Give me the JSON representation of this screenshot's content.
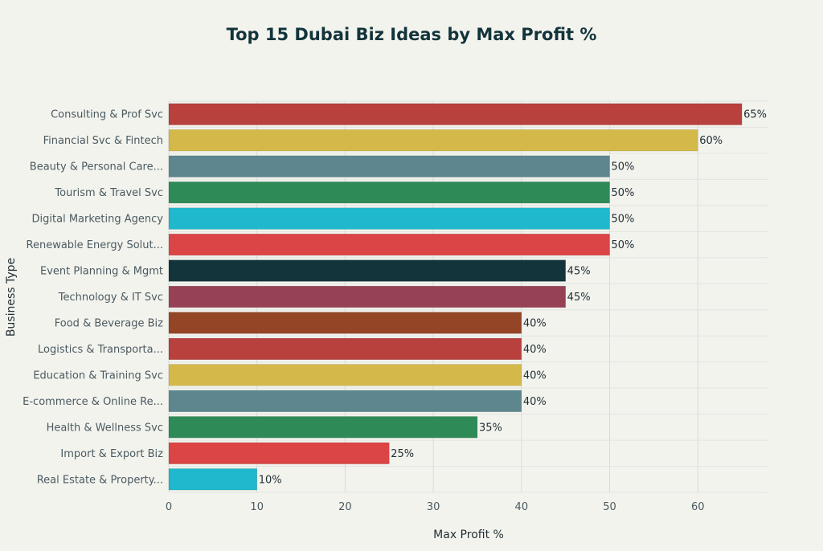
{
  "chart_data": {
    "type": "bar",
    "orientation": "horizontal",
    "title": "Top 15 Dubai Biz Ideas by Max Profit %",
    "xlabel": "Max Profit %",
    "ylabel": "Business Type",
    "xlim": [
      0,
      68
    ],
    "xticks": [
      0,
      10,
      20,
      30,
      40,
      50,
      60
    ],
    "value_suffix": "%",
    "grid": true,
    "categories": [
      "Consulting & Prof Svc",
      "Financial Svc & Fintech",
      "Beauty & Personal Care...",
      "Tourism & Travel Svc",
      "Digital Marketing Agency",
      "Renewable Energy Solut...",
      "Event Planning & Mgmt",
      "Technology & IT Svc",
      "Food & Beverage Biz",
      "Logistics & Transporta...",
      "Education & Training Svc",
      "E-commerce & Online Re...",
      "Health & Wellness Svc",
      "Import & Export Biz",
      "Real Estate & Property..."
    ],
    "values": [
      65,
      60,
      50,
      50,
      50,
      50,
      45,
      45,
      40,
      40,
      40,
      40,
      35,
      25,
      10
    ],
    "value_labels": [
      "65%",
      "60%",
      "50%",
      "50%",
      "50%",
      "50%",
      "45%",
      "45%",
      "40%",
      "40%",
      "40%",
      "40%",
      "35%",
      "25%",
      "10%"
    ],
    "colors": [
      "#b8403d",
      "#d4b94a",
      "#5d868e",
      "#2e8b57",
      "#1fb8cd",
      "#db4545",
      "#13343b",
      "#964254",
      "#944525",
      "#b8403d",
      "#d4b94a",
      "#5d868e",
      "#2e8b57",
      "#db4545",
      "#1fb8cd"
    ]
  }
}
